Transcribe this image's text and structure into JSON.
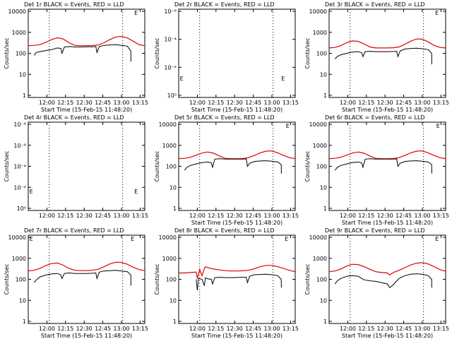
{
  "figure": {
    "background": "#ffffff",
    "event_color": "#000000",
    "lld_color": "#dd0000"
  },
  "chart_data": [
    {
      "type": "line",
      "title": "Det 1r BLACK = Events, RED = LLD",
      "xlabel": "Start Time (15-Feb-15 11:48:20)",
      "ylabel": "Counts/sec",
      "log_y": true,
      "ylim": [
        1,
        10000
      ],
      "yticks": [
        "1",
        "10",
        "100",
        "1000",
        "10000"
      ],
      "xticks": [
        "12:00",
        "12:15",
        "12:30",
        "12:45",
        "13:00",
        "13:15"
      ],
      "series": [
        {
          "role": "lld",
          "x": [
            0,
            5,
            10,
            15,
            20,
            25,
            30,
            35,
            40,
            45,
            50,
            55,
            60,
            65,
            70,
            75,
            80,
            85,
            90,
            95,
            100
          ],
          "values": [
            230,
            240,
            260,
            330,
            450,
            550,
            480,
            320,
            240,
            230,
            230,
            235,
            250,
            320,
            450,
            600,
            640,
            540,
            380,
            260,
            230
          ]
        },
        {
          "role": "events",
          "x": [
            5,
            7,
            10,
            15,
            20,
            25,
            28,
            29,
            31,
            35,
            40,
            45,
            50,
            55,
            58,
            59,
            61,
            65,
            70,
            75,
            80,
            85,
            88,
            88.1
          ],
          "values": [
            80,
            110,
            120,
            135,
            150,
            180,
            170,
            100,
            200,
            210,
            200,
            200,
            205,
            205,
            210,
            110,
            210,
            240,
            250,
            260,
            240,
            220,
            130,
            40
          ]
        }
      ],
      "marks": [
        {
          "type": "E",
          "x": 91,
          "y": 10000
        }
      ]
    },
    {
      "type": "line",
      "title": "Det 2r BLACK = Events, RED = LLD",
      "xlabel": "Start Time (15-Feb-15 11:48:20)",
      "ylabel": "Counts/sec",
      "log_y": true,
      "ylim": [
        1,
        10
      ],
      "yticks": [
        "10⁰",
        "10⁻²",
        "10⁻⁴",
        "10⁻⁶"
      ],
      "xticks": [
        "12:00",
        "12:15",
        "12:30",
        "12:45",
        "13:00",
        "13:15"
      ],
      "series": [],
      "marks": [
        {
          "type": "E",
          "x": 1,
          "y": 1.5
        },
        {
          "type": "E",
          "x": 88,
          "y": 1.5
        }
      ]
    },
    {
      "type": "line",
      "title": "Det 3r BLACK = Events, RED = LLD",
      "xlabel": "Start Time (15-Feb-15 11:48:20)",
      "ylabel": "Counts/sec",
      "log_y": true,
      "ylim": [
        1,
        10000
      ],
      "yticks": [
        "1",
        "10",
        "100",
        "1000",
        "10000"
      ],
      "xticks": [
        "12:00",
        "12:15",
        "12:30",
        "12:45",
        "13:00",
        "13:15"
      ],
      "series": [
        {
          "role": "lld",
          "x": [
            0,
            5,
            10,
            15,
            20,
            25,
            30,
            35,
            40,
            45,
            50,
            55,
            60,
            65,
            70,
            75,
            80,
            85,
            90,
            95,
            100
          ],
          "values": [
            180,
            190,
            230,
            320,
            390,
            370,
            280,
            200,
            180,
            180,
            180,
            185,
            200,
            270,
            380,
            480,
            470,
            350,
            240,
            190,
            180
          ]
        },
        {
          "role": "events",
          "x": [
            5,
            7,
            10,
            15,
            20,
            25,
            28,
            29,
            31,
            35,
            40,
            45,
            50,
            55,
            58,
            59,
            61,
            65,
            70,
            75,
            80,
            85,
            88,
            88.1
          ],
          "values": [
            55,
            70,
            85,
            100,
            115,
            120,
            105,
            70,
            120,
            125,
            120,
            120,
            120,
            122,
            125,
            70,
            130,
            160,
            170,
            175,
            165,
            150,
            100,
            30
          ]
        }
      ],
      "marks": [
        {
          "type": "E",
          "x": 91,
          "y": 10000
        }
      ]
    },
    {
      "type": "line",
      "title": "Det 4r BLACK = Events, RED = LLD",
      "xlabel": "",
      "ylabel": "Counts/sec",
      "log_y": true,
      "ylim": [
        1,
        10
      ],
      "yticks": [
        "10⁰",
        "10⁻²",
        "10⁻⁴",
        "10⁻⁶",
        "10⁻⁸"
      ],
      "xticks": [
        "12:00",
        "12:15",
        "12:30",
        "12:45",
        "13:00",
        "13:15"
      ],
      "series": [],
      "marks": [
        {
          "type": "E",
          "x": 1,
          "y": 1.5
        },
        {
          "type": "E",
          "x": 91,
          "y": 1.5
        }
      ]
    },
    {
      "type": "line",
      "title": "Det 5r BLACK = Events, RED = LLD",
      "xlabel": "Start Time (15-Feb-15 11:48:20)",
      "ylabel": "Counts/sec",
      "log_y": true,
      "ylim": [
        1,
        10000
      ],
      "yticks": [
        "1",
        "10",
        "100",
        "1000",
        "10000"
      ],
      "xticks": [
        "12:00",
        "12:15",
        "12:30",
        "12:45",
        "13:00",
        "13:15"
      ],
      "series": [
        {
          "role": "lld",
          "x": [
            0,
            5,
            10,
            15,
            20,
            25,
            30,
            35,
            40,
            45,
            50,
            55,
            60,
            65,
            70,
            75,
            80,
            85,
            90,
            95,
            100
          ],
          "values": [
            230,
            240,
            270,
            340,
            430,
            480,
            420,
            310,
            240,
            230,
            230,
            235,
            260,
            330,
            440,
            530,
            540,
            440,
            330,
            260,
            230
          ]
        },
        {
          "role": "events",
          "x": [
            5,
            7,
            10,
            15,
            20,
            25,
            28,
            29,
            31,
            35,
            40,
            45,
            50,
            55,
            58,
            59,
            61,
            65,
            70,
            75,
            80,
            85,
            88,
            88.1
          ],
          "values": [
            65,
            90,
            110,
            130,
            150,
            160,
            145,
            90,
            220,
            230,
            220,
            220,
            220,
            222,
            225,
            100,
            140,
            170,
            180,
            185,
            175,
            160,
            120,
            45
          ]
        }
      ],
      "marks": [
        {
          "type": "E",
          "x": 92,
          "y": 10000
        }
      ]
    },
    {
      "type": "line",
      "title": "Det 6r BLACK = Events, RED = LLD",
      "xlabel": "Start Time (15-Feb-15 11:48:20)",
      "ylabel": "Counts/sec",
      "log_y": true,
      "ylim": [
        1,
        10000
      ],
      "yticks": [
        "1",
        "10",
        "100",
        "1000",
        "10000"
      ],
      "xticks": [
        "12:00",
        "12:15",
        "12:30",
        "12:45",
        "13:00",
        "13:15"
      ],
      "series": [
        {
          "role": "lld",
          "x": [
            0,
            5,
            10,
            15,
            20,
            25,
            30,
            35,
            40,
            45,
            50,
            55,
            60,
            65,
            70,
            75,
            80,
            85,
            90,
            95,
            100
          ],
          "values": [
            230,
            240,
            270,
            340,
            430,
            480,
            420,
            310,
            240,
            230,
            230,
            235,
            260,
            330,
            440,
            530,
            540,
            440,
            330,
            260,
            230
          ]
        },
        {
          "role": "events",
          "x": [
            5,
            7,
            10,
            15,
            20,
            25,
            28,
            29,
            31,
            35,
            40,
            45,
            50,
            55,
            58,
            59,
            61,
            65,
            70,
            75,
            80,
            85,
            88,
            88.1
          ],
          "values": [
            65,
            90,
            110,
            130,
            150,
            160,
            145,
            90,
            220,
            230,
            220,
            220,
            220,
            222,
            225,
            100,
            140,
            170,
            180,
            185,
            175,
            160,
            120,
            45
          ]
        }
      ],
      "marks": [
        {
          "type": "E",
          "x": 92,
          "y": 10000
        }
      ]
    },
    {
      "type": "line",
      "title": "Det 7r BLACK = Events, RED = LLD",
      "xlabel": "Start Time (15-Feb-15 11:48:20)",
      "ylabel": "Counts/sec",
      "log_y": true,
      "ylim": [
        1,
        10000
      ],
      "yticks": [
        "1",
        "10",
        "100",
        "1000",
        "10000"
      ],
      "xticks": [
        "12:00",
        "12:15",
        "12:30",
        "12:45",
        "13:00",
        "13:15"
      ],
      "series": [
        {
          "role": "lld",
          "x": [
            0,
            5,
            10,
            15,
            20,
            25,
            30,
            35,
            40,
            45,
            50,
            55,
            60,
            65,
            70,
            75,
            80,
            85,
            90,
            95,
            100
          ],
          "values": [
            250,
            270,
            330,
            450,
            560,
            600,
            470,
            330,
            270,
            260,
            260,
            270,
            300,
            400,
            540,
            650,
            640,
            520,
            380,
            290,
            260
          ]
        },
        {
          "role": "events",
          "x": [
            5,
            7,
            10,
            15,
            20,
            25,
            28,
            29,
            31,
            35,
            40,
            45,
            50,
            55,
            58,
            59,
            61,
            65,
            70,
            75,
            80,
            85,
            88,
            88.1
          ],
          "values": [
            70,
            95,
            130,
            160,
            180,
            190,
            160,
            110,
            190,
            200,
            190,
            190,
            190,
            195,
            200,
            110,
            220,
            250,
            260,
            270,
            250,
            230,
            160,
            50
          ]
        }
      ],
      "marks": [
        {
          "type": "E",
          "x": 1,
          "y": 10000
        },
        {
          "type": "E",
          "x": 88,
          "y": 10000
        }
      ]
    },
    {
      "type": "line",
      "title": "Det 8r BLACK = Events, RED = LLD",
      "xlabel": "Start Time (15-Feb-15 11:48:20)",
      "ylabel": "Counts/sec",
      "log_y": true,
      "ylim": [
        1,
        10000
      ],
      "yticks": [
        "1",
        "10",
        "100",
        "1000",
        "10000"
      ],
      "xticks": [
        "12:00",
        "12:15",
        "12:30",
        "12:45",
        "13:00",
        "13:15"
      ],
      "series": [
        {
          "role": "lld",
          "x": [
            0,
            5,
            10,
            15,
            16,
            18,
            20,
            22,
            23,
            25,
            30,
            35,
            40,
            45,
            50,
            55,
            60,
            65,
            70,
            75,
            80,
            85,
            90,
            95,
            100
          ],
          "values": [
            200,
            200,
            210,
            220,
            110,
            300,
            150,
            320,
            400,
            360,
            310,
            280,
            260,
            250,
            250,
            255,
            270,
            320,
            400,
            460,
            460,
            400,
            330,
            270,
            230
          ]
        },
        {
          "role": "events",
          "x": [
            15,
            16,
            17,
            20,
            22,
            23,
            25,
            28,
            29,
            31,
            35,
            40,
            45,
            50,
            55,
            58,
            59,
            61,
            65,
            70,
            75,
            80,
            85,
            88,
            88.1
          ],
          "values": [
            100,
            30,
            110,
            100,
            50,
            120,
            105,
            100,
            60,
            120,
            125,
            120,
            120,
            122,
            125,
            125,
            70,
            140,
            165,
            170,
            175,
            165,
            150,
            100,
            40
          ]
        }
      ],
      "marks": [
        {
          "type": "E",
          "x": 91,
          "y": 10000
        }
      ]
    },
    {
      "type": "line",
      "title": "Det 9r BLACK = Events, RED = LLD",
      "xlabel": "Start Time (15-Feb-15 11:48:20)",
      "ylabel": "Counts/sec",
      "log_y": true,
      "ylim": [
        1,
        10000
      ],
      "yticks": [
        "1",
        "10",
        "100",
        "1000",
        "10000"
      ],
      "xticks": [
        "12:00",
        "12:15",
        "12:30",
        "12:45",
        "13:00",
        "13:15"
      ],
      "series": [
        {
          "role": "lld",
          "x": [
            0,
            5,
            10,
            15,
            20,
            25,
            30,
            35,
            40,
            45,
            50,
            52,
            55,
            60,
            65,
            70,
            75,
            80,
            85,
            90,
            95,
            100
          ],
          "values": [
            230,
            250,
            310,
            430,
            520,
            500,
            400,
            300,
            230,
            210,
            200,
            160,
            210,
            270,
            360,
            480,
            590,
            620,
            540,
            400,
            290,
            240
          ]
        },
        {
          "role": "events",
          "x": [
            5,
            7,
            10,
            15,
            20,
            25,
            28,
            30,
            35,
            40,
            45,
            50,
            52,
            55,
            60,
            65,
            70,
            75,
            80,
            85,
            88,
            88.1
          ],
          "values": [
            60,
            85,
            110,
            140,
            150,
            140,
            110,
            95,
            85,
            80,
            70,
            60,
            40,
            55,
            110,
            150,
            175,
            185,
            175,
            150,
            100,
            40
          ]
        }
      ],
      "marks": [
        {
          "type": "E",
          "x": 91,
          "y": 10000
        }
      ]
    }
  ]
}
